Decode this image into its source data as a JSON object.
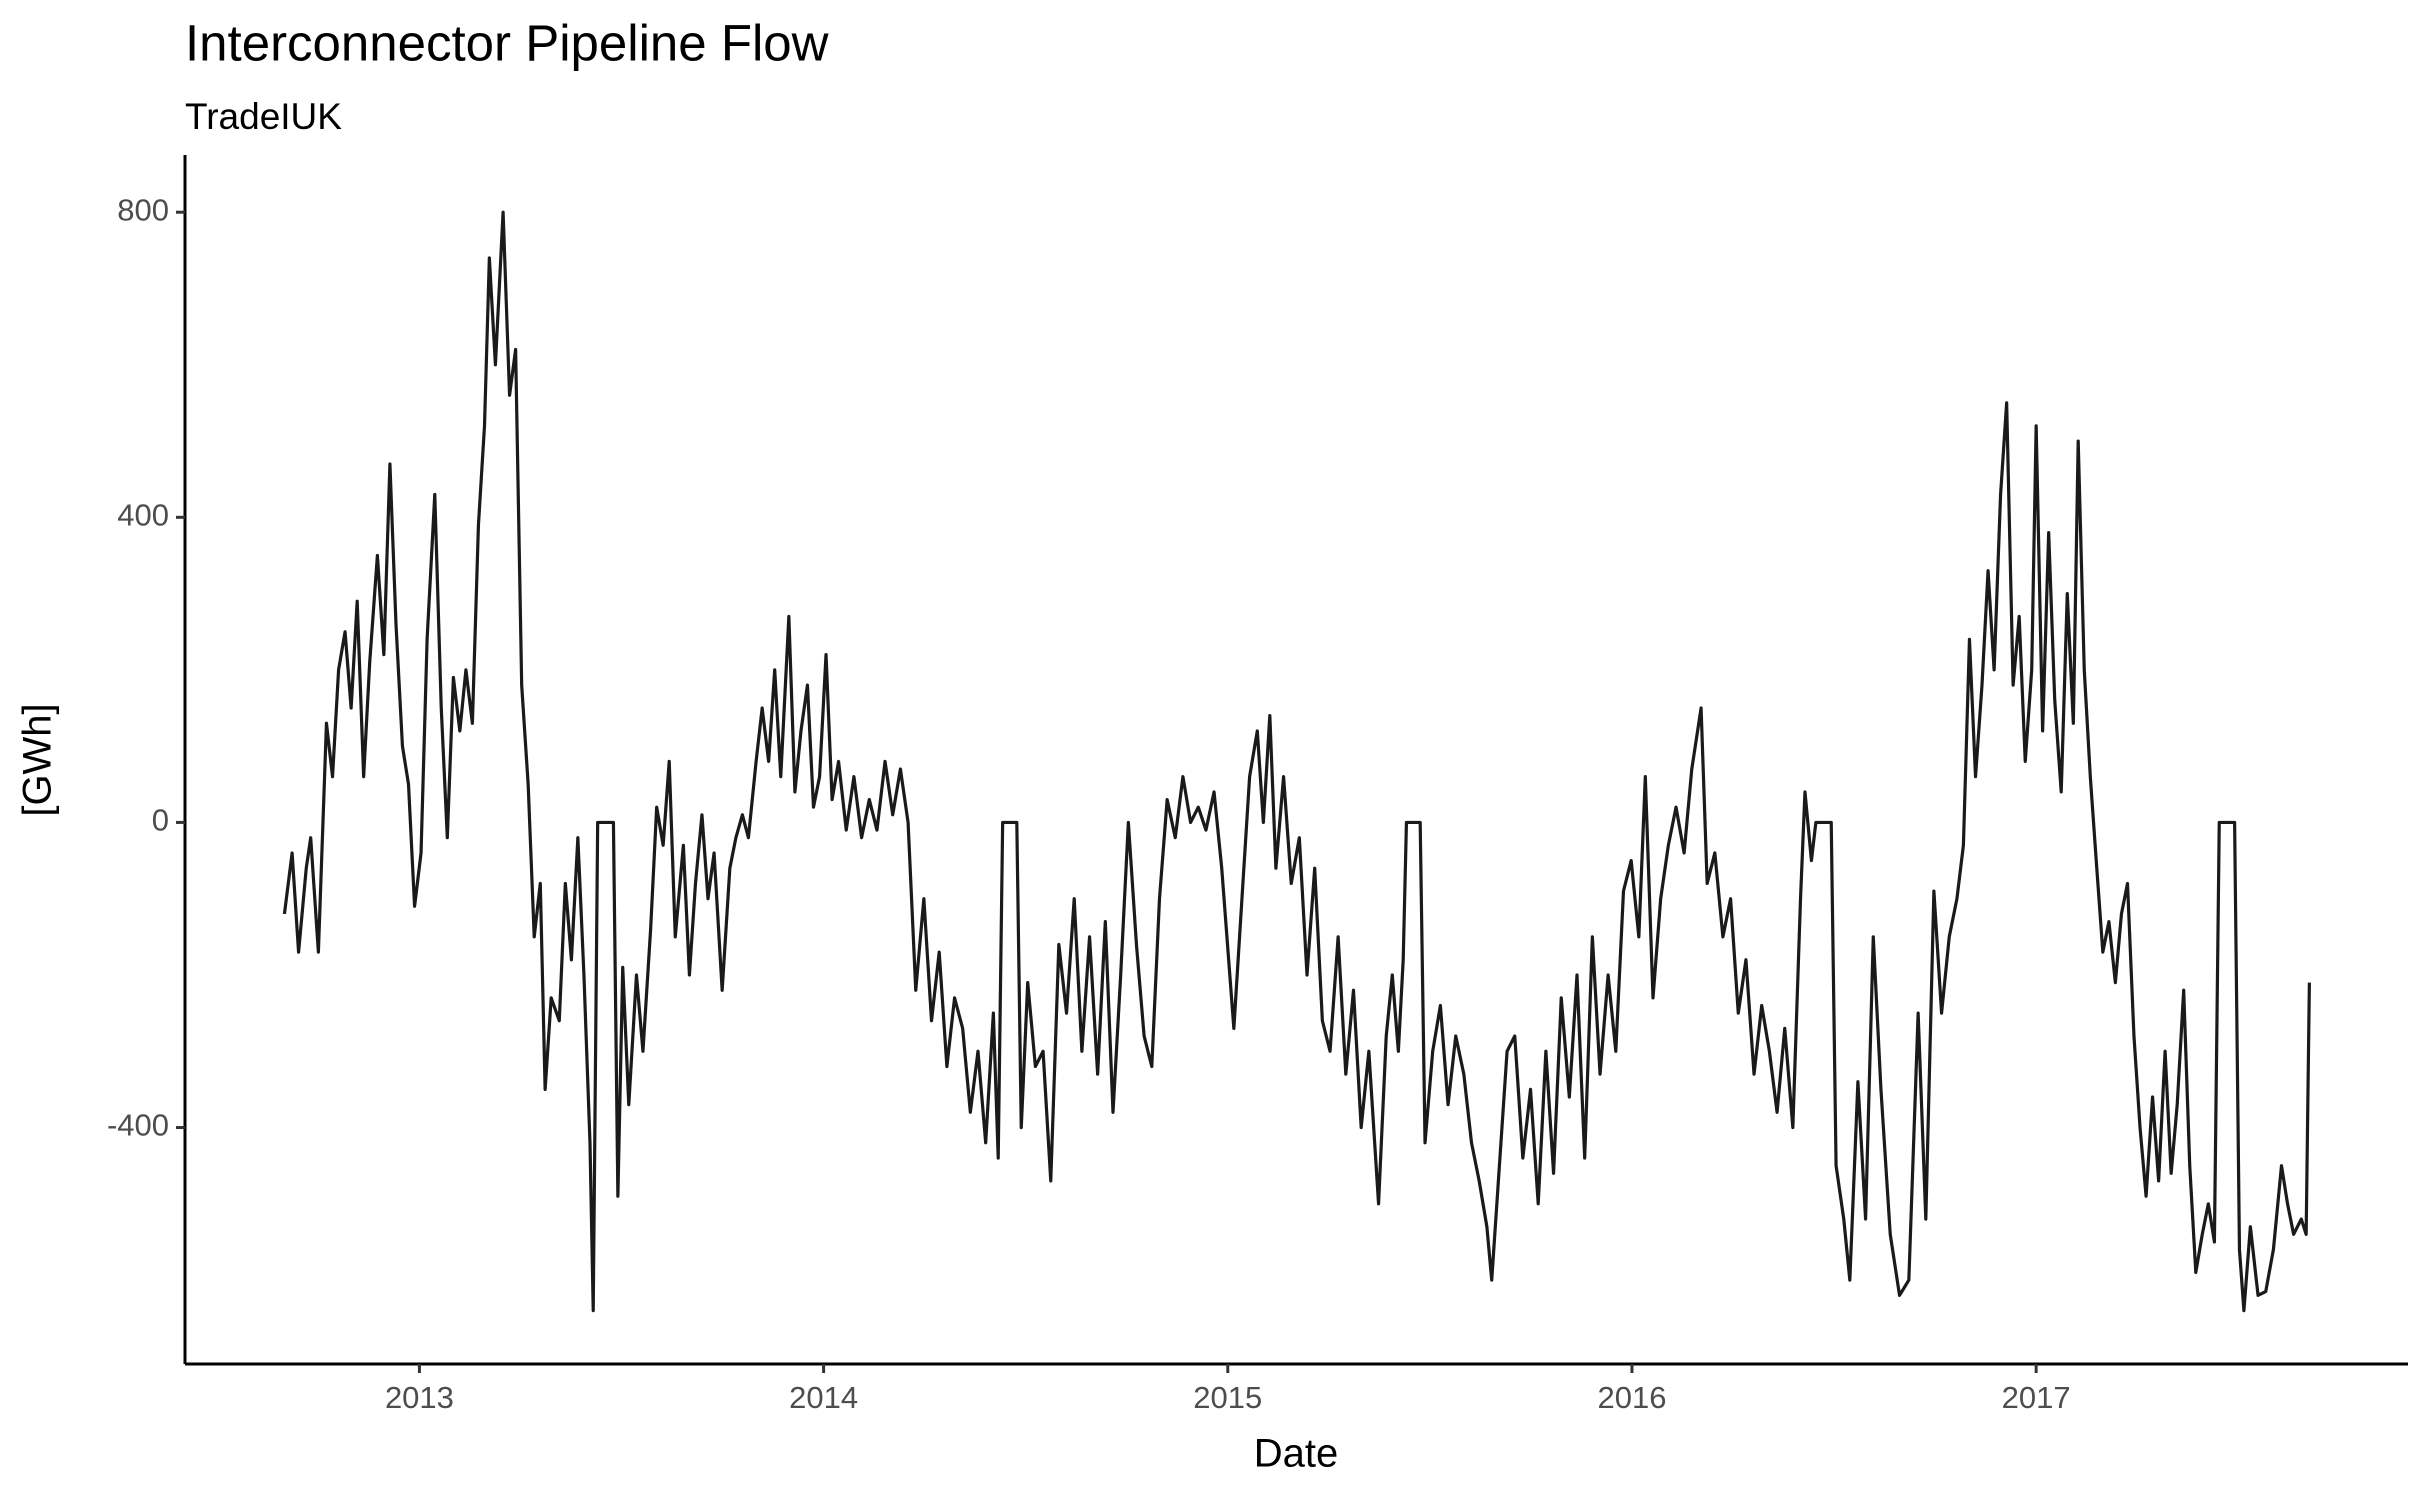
{
  "chart_data": {
    "type": "line",
    "title": "Interconnector Pipeline Flow",
    "subtitle": "TradeIUK",
    "x_label": "Date",
    "y_label": "[GWh]",
    "color": "#1a1a1a",
    "grid": false,
    "xlim": [
      2012.42,
      2017.92
    ],
    "xticks": [
      2013,
      2014,
      2015,
      2016,
      2017
    ],
    "ylim": [
      -710,
      875
    ],
    "yticks": [
      -400,
      0,
      400,
      800
    ],
    "x": [
      2012.666,
      2012.685,
      2012.701,
      2012.72,
      2012.731,
      2012.75,
      2012.77,
      2012.785,
      2012.8,
      2012.816,
      2012.831,
      2012.846,
      2012.862,
      2012.877,
      2012.896,
      2012.912,
      2012.927,
      2012.942,
      2012.958,
      2012.973,
      2012.988,
      2013.004,
      2013.019,
      2013.038,
      2013.054,
      2013.069,
      2013.084,
      2013.1,
      2013.115,
      2013.131,
      2013.146,
      2013.161,
      2013.173,
      2013.188,
      2013.207,
      2013.223,
      2013.238,
      2013.253,
      2013.269,
      2013.284,
      2013.299,
      2013.311,
      2013.326,
      2013.346,
      2013.361,
      2013.376,
      2013.392,
      2013.407,
      2013.422,
      2013.43,
      2013.441,
      2013.48,
      2013.491,
      2013.503,
      2013.518,
      2013.537,
      2013.553,
      2013.572,
      2013.587,
      2013.603,
      2013.618,
      2013.633,
      2013.653,
      2013.668,
      2013.683,
      2013.699,
      2013.714,
      2013.729,
      2013.749,
      2013.768,
      2013.783,
      2013.799,
      2013.814,
      2013.833,
      2013.848,
      2013.864,
      2013.879,
      2013.894,
      2013.914,
      2013.929,
      2013.944,
      2013.96,
      2013.975,
      2013.99,
      2014.006,
      2014.021,
      2014.037,
      2014.056,
      2014.075,
      2014.094,
      2014.113,
      2014.132,
      2014.152,
      2014.171,
      2014.19,
      2014.209,
      2014.228,
      2014.248,
      2014.267,
      2014.286,
      2014.305,
      2014.324,
      2014.344,
      2014.363,
      2014.382,
      2014.401,
      2014.42,
      2014.432,
      2014.443,
      2014.478,
      2014.489,
      2014.505,
      2014.524,
      2014.543,
      2014.562,
      2014.582,
      2014.601,
      2014.62,
      2014.639,
      2014.658,
      2014.678,
      2014.697,
      2014.716,
      2014.735,
      2014.754,
      2014.774,
      2014.793,
      2014.812,
      2014.831,
      2014.85,
      2014.87,
      2014.889,
      2014.908,
      2014.927,
      2014.946,
      2014.966,
      2014.985,
      2015.015,
      2015.035,
      2015.054,
      2015.073,
      2015.088,
      2015.104,
      2015.119,
      2015.138,
      2015.157,
      2015.177,
      2015.196,
      2015.215,
      2015.234,
      2015.253,
      2015.273,
      2015.292,
      2015.311,
      2015.33,
      2015.349,
      2015.373,
      2015.392,
      2015.407,
      2015.422,
      2015.434,
      2015.442,
      2015.476,
      2015.488,
      2015.507,
      2015.526,
      2015.545,
      2015.564,
      2015.584,
      2015.603,
      2015.622,
      2015.641,
      2015.653,
      2015.672,
      2015.691,
      2015.71,
      2015.73,
      2015.749,
      2015.768,
      2015.787,
      2015.806,
      2015.825,
      2015.845,
      2015.864,
      2015.883,
      2015.902,
      2015.921,
      2015.941,
      2015.96,
      2015.979,
      2015.998,
      2016.017,
      2016.033,
      2016.052,
      2016.071,
      2016.09,
      2016.109,
      2016.129,
      2016.148,
      2016.171,
      2016.186,
      2016.205,
      2016.225,
      2016.244,
      2016.263,
      2016.282,
      2016.302,
      2016.321,
      2016.34,
      2016.359,
      2016.378,
      2016.398,
      2016.417,
      2016.428,
      2016.444,
      2016.455,
      2016.493,
      2016.505,
      2016.524,
      2016.539,
      2016.559,
      2016.578,
      2016.597,
      2016.616,
      2016.639,
      2016.662,
      2016.685,
      2016.708,
      2016.727,
      2016.747,
      2016.766,
      2016.785,
      2016.804,
      2016.82,
      2016.835,
      2016.85,
      2016.866,
      2016.881,
      2016.896,
      2016.912,
      2016.927,
      2016.943,
      2016.958,
      2016.973,
      2016.989,
      2017.0,
      2017.016,
      2017.031,
      2017.046,
      2017.062,
      2017.077,
      2017.092,
      2017.104,
      2017.119,
      2017.134,
      2017.15,
      2017.165,
      2017.18,
      2017.196,
      2017.211,
      2017.226,
      2017.242,
      2017.257,
      2017.272,
      2017.288,
      2017.303,
      2017.319,
      2017.334,
      2017.349,
      2017.365,
      2017.38,
      2017.395,
      2017.411,
      2017.426,
      2017.441,
      2017.453,
      2017.491,
      2017.503,
      2017.514,
      2017.53,
      2017.549,
      2017.568,
      2017.587,
      2017.607,
      2017.622,
      2017.637,
      2017.656,
      2017.668,
      2017.676
    ],
    "values": [
      -120,
      -40,
      -170,
      -60,
      -20,
      -170,
      130,
      60,
      200,
      250,
      150,
      290,
      60,
      210,
      350,
      220,
      470,
      260,
      100,
      50,
      -110,
      -40,
      240,
      430,
      150,
      -20,
      190,
      120,
      200,
      130,
      390,
      520,
      740,
      600,
      800,
      560,
      620,
      180,
      50,
      -150,
      -80,
      -350,
      -230,
      -260,
      -80,
      -180,
      -20,
      -200,
      -420,
      -640,
      0,
      0,
      -490,
      -190,
      -370,
      -200,
      -300,
      -140,
      20,
      -30,
      80,
      -150,
      -30,
      -200,
      -80,
      10,
      -100,
      -40,
      -220,
      -60,
      -20,
      10,
      -20,
      80,
      150,
      80,
      200,
      60,
      270,
      40,
      120,
      180,
      20,
      60,
      220,
      30,
      80,
      -10,
      60,
      -20,
      30,
      -10,
      80,
      10,
      70,
      0,
      -220,
      -100,
      -260,
      -170,
      -320,
      -230,
      -270,
      -380,
      -300,
      -420,
      -250,
      -440,
      0,
      0,
      -400,
      -210,
      -320,
      -300,
      -470,
      -160,
      -250,
      -100,
      -300,
      -150,
      -330,
      -130,
      -380,
      -200,
      0,
      -160,
      -280,
      -320,
      -100,
      30,
      -20,
      60,
      0,
      20,
      -10,
      40,
      -60,
      -270,
      -100,
      60,
      120,
      0,
      140,
      -60,
      60,
      -80,
      -20,
      -200,
      -60,
      -260,
      -300,
      -150,
      -330,
      -220,
      -400,
      -300,
      -500,
      -280,
      -200,
      -300,
      -180,
      0,
      0,
      -420,
      -300,
      -240,
      -370,
      -280,
      -330,
      -420,
      -470,
      -530,
      -600,
      -450,
      -300,
      -280,
      -440,
      -350,
      -500,
      -300,
      -460,
      -230,
      -360,
      -200,
      -440,
      -150,
      -330,
      -200,
      -300,
      -90,
      -50,
      -150,
      60,
      -230,
      -100,
      -30,
      20,
      -40,
      70,
      150,
      -80,
      -40,
      -150,
      -100,
      -250,
      -180,
      -330,
      -240,
      -300,
      -380,
      -270,
      -400,
      -100,
      40,
      -50,
      0,
      0,
      -450,
      -520,
      -600,
      -340,
      -520,
      -150,
      -350,
      -540,
      -620,
      -600,
      -250,
      -520,
      -90,
      -250,
      -150,
      -100,
      -30,
      240,
      60,
      180,
      330,
      200,
      430,
      550,
      180,
      270,
      80,
      200,
      520,
      120,
      380,
      160,
      40,
      300,
      130,
      500,
      200,
      60,
      -60,
      -170,
      -130,
      -210,
      -120,
      -80,
      -280,
      -400,
      -490,
      -360,
      -470,
      -300,
      -460,
      -370,
      -220,
      -450,
      -590,
      -540,
      -500,
      -550,
      0,
      0,
      -560,
      -640,
      -530,
      -620,
      -615,
      -560,
      -450,
      -500,
      -540,
      -520,
      -540,
      -210
    ]
  }
}
